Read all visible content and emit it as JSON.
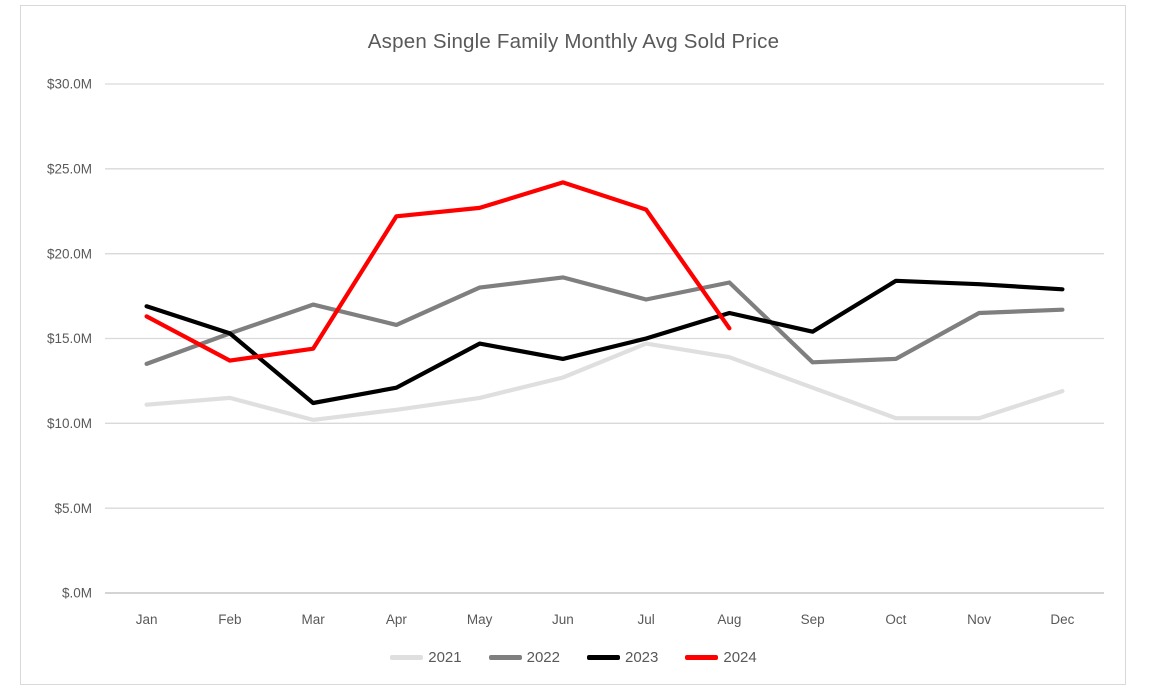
{
  "chart_data": {
    "type": "line",
    "title": "Aspen Single Family Monthly Avg Sold Price",
    "categories": [
      "Jan",
      "Feb",
      "Mar",
      "Apr",
      "May",
      "Jun",
      "Jul",
      "Aug",
      "Sep",
      "Oct",
      "Nov",
      "Dec"
    ],
    "series": [
      {
        "name": "2021",
        "color": "#dfdfdf",
        "values": [
          11.1,
          11.5,
          10.2,
          10.8,
          11.5,
          12.7,
          14.7,
          13.9,
          12.1,
          10.3,
          10.3,
          11.9
        ]
      },
      {
        "name": "2022",
        "color": "#7f7f7f",
        "values": [
          13.5,
          15.3,
          17.0,
          15.8,
          18.0,
          18.6,
          17.3,
          18.3,
          13.6,
          13.8,
          16.5,
          16.7
        ]
      },
      {
        "name": "2023",
        "color": "#000000",
        "values": [
          16.9,
          15.3,
          11.2,
          12.1,
          14.7,
          13.8,
          15.0,
          16.5,
          15.4,
          18.4,
          18.2,
          17.9
        ]
      },
      {
        "name": "2024",
        "color": "#ff0000",
        "values": [
          16.3,
          13.7,
          14.4,
          22.2,
          22.7,
          24.2,
          22.6,
          15.6
        ]
      }
    ],
    "y_axis": {
      "min": 0,
      "max": 30,
      "step": 5,
      "tick_labels": [
        "$30.0M",
        "$25.0M",
        "$20.0M",
        "$15.0M",
        "$10.0M",
        "$5.0M",
        "$.0M"
      ]
    },
    "x_axis": {
      "tick_labels": [
        "Jan",
        "Feb",
        "Mar",
        "Apr",
        "May",
        "Jun",
        "Jul",
        "Aug",
        "Sep",
        "Oct",
        "Nov",
        "Dec"
      ]
    },
    "legend_position": "bottom",
    "grid": true,
    "units": "USD millions"
  },
  "colors": {
    "background": "#ffffff",
    "chart_border": "#d9d9d9",
    "gridline": "#d9d9d9",
    "axis_line": "#bfbfbf",
    "text": "#595959"
  }
}
